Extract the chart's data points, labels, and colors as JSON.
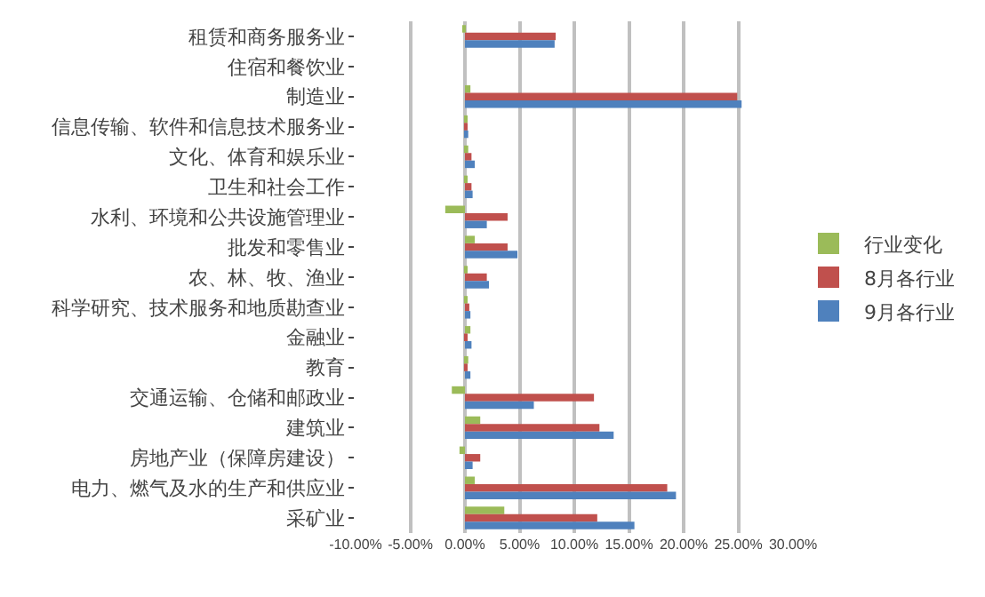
{
  "chart_data": {
    "type": "bar",
    "orientation": "horizontal",
    "categories": [
      "租赁和商务服务业",
      "住宿和餐饮业",
      "制造业",
      "信息传输、软件和信息技术服务业",
      "文化、体育和娱乐业",
      "卫生和社会工作",
      "水利、环境和公共设施管理业",
      "批发和零售业",
      "农、林、牧、渔业",
      "科学研究、技术服务和地质勘查业",
      "金融业",
      "教育",
      "交通运输、仓储和邮政业",
      "建筑业",
      "房地产业（保障房建设）",
      "电力、燃气及水的生产和供应业",
      "采矿业"
    ],
    "series": [
      {
        "name": "行业变化",
        "color": "#9bbb59",
        "values": [
          -0.1,
          0,
          0.5,
          0.1,
          0.3,
          0.2,
          -1.8,
          0.9,
          0.2,
          0.1,
          0.5,
          0.3,
          -1.2,
          1.4,
          -0.5,
          0.9,
          3.6
        ]
      },
      {
        "name": "8月各行业",
        "color": "#c0504d",
        "values": [
          8.3,
          0,
          24.9,
          0.2,
          0.6,
          0.6,
          3.9,
          3.9,
          2.0,
          0.4,
          0.2,
          0.1,
          11.8,
          12.3,
          1.4,
          18.5,
          12.1
        ]
      },
      {
        "name": "9月各行业",
        "color": "#4f81bd",
        "values": [
          8.2,
          0,
          25.3,
          0.3,
          0.9,
          0.7,
          2.0,
          4.8,
          2.2,
          0.5,
          0.6,
          0.5,
          6.3,
          13.6,
          0.7,
          19.3,
          15.5
        ]
      }
    ],
    "xlim": [
      -10,
      30
    ],
    "xticks": [
      {
        "value": -10,
        "label": "-10.00%"
      },
      {
        "value": -5,
        "label": "-5.00%"
      },
      {
        "value": 0,
        "label": "0.00%"
      },
      {
        "value": 5,
        "label": "5.00%"
      },
      {
        "value": 10,
        "label": "10.00%"
      },
      {
        "value": 15,
        "label": "15.00%"
      },
      {
        "value": 20,
        "label": "20.00%"
      },
      {
        "value": 25,
        "label": "25.00%"
      },
      {
        "value": 30,
        "label": "30.00%"
      }
    ],
    "grid": "x",
    "legend": "right"
  }
}
